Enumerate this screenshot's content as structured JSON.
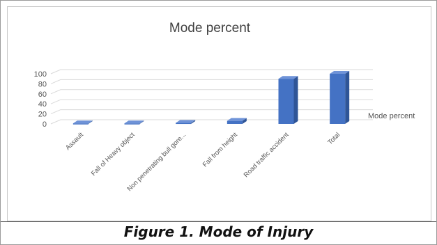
{
  "caption": "Figure 1. Mode of Injury",
  "colors": {
    "bar_front": "#4472c4",
    "bar_side": "#2f5597",
    "bar_top": "#6f93d8",
    "grid": "#d9d9d9"
  },
  "chart_data": {
    "type": "bar",
    "title": "Mode percent",
    "legend": {
      "position": "right",
      "entries": [
        "Mode percent"
      ]
    },
    "categories": [
      "Assault",
      "Fall of Heavy object",
      "Non penetrating bull gore...",
      "Fall from height",
      "Road traffic accident",
      "Total"
    ],
    "series": [
      {
        "name": "Mode percent",
        "values": [
          1,
          1,
          2,
          6,
          90,
          100
        ]
      }
    ],
    "ylim": [
      0,
      100
    ],
    "yticks": [
      0,
      20,
      40,
      60,
      80,
      100
    ],
    "grid": true,
    "style": "3d-column"
  }
}
